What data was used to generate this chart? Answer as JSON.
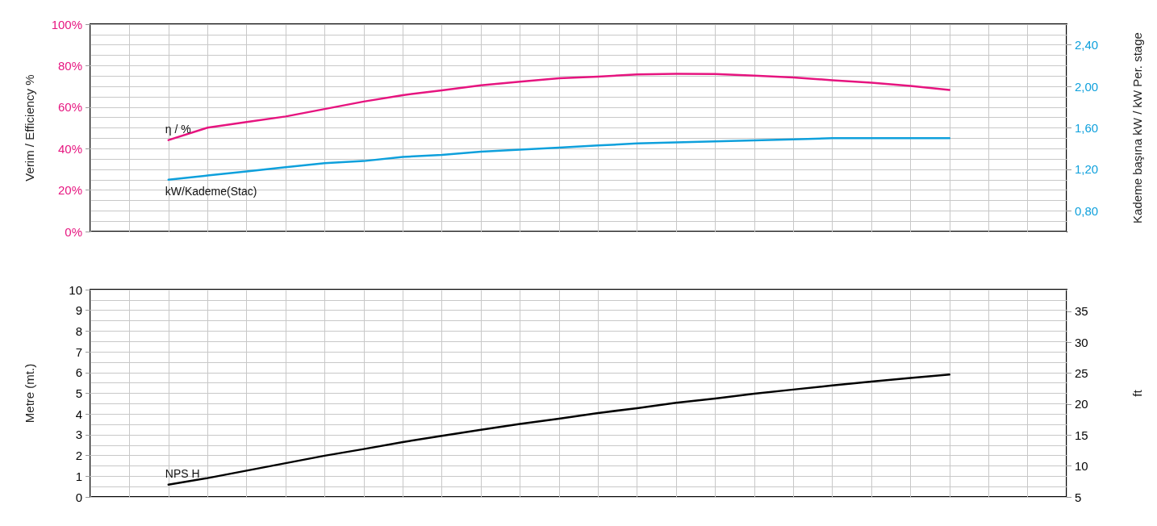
{
  "chart_data": [
    {
      "type": "line",
      "ylabel": "Verim / Efficiency %",
      "y2label": "Kademe başına kW / kW Per. stage",
      "categories": [
        null,
        null,
        null,
        null,
        null,
        null,
        null,
        null,
        null,
        null,
        null,
        null,
        null,
        null,
        null,
        null,
        null,
        null,
        null,
        null,
        null,
        null,
        null,
        null,
        null,
        null
      ],
      "series": [
        {
          "name": "η / %",
          "color": "#e6147f",
          "values": [
            null,
            null,
            44.1,
            50.1,
            52.8,
            55.5,
            59.1,
            62.7,
            65.8,
            68.1,
            70.5,
            72.3,
            73.9,
            74.7,
            75.8,
            76.1,
            76.0,
            75.2,
            74.3,
            73.0,
            71.8,
            70.2,
            68.3,
            null,
            null,
            null
          ]
        },
        {
          "name": "kW/Kademe(Stac)",
          "color": "#0ea0dc",
          "axis": "y2",
          "values": [
            null,
            null,
            1.1,
            1.14,
            1.18,
            1.22,
            1.26,
            1.28,
            1.32,
            1.34,
            1.37,
            1.39,
            1.41,
            1.43,
            1.45,
            1.46,
            1.47,
            1.48,
            1.49,
            1.5,
            1.5,
            1.5,
            1.5,
            null,
            null,
            null
          ]
        }
      ],
      "ylim": [
        0,
        100
      ],
      "yticks": [
        {
          "value": 0,
          "label": "0%"
        },
        {
          "value": 20,
          "label": "20%"
        },
        {
          "value": 40,
          "label": "40%"
        },
        {
          "value": 60,
          "label": "60%"
        },
        {
          "value": 80,
          "label": "80%"
        },
        {
          "value": 100,
          "label": "100%"
        }
      ],
      "y2lim": [
        0.6,
        2.6
      ],
      "y2ticks": [
        {
          "value": 0.8,
          "label": "0,80"
        },
        {
          "value": 1.2,
          "label": "1,20"
        },
        {
          "value": 1.6,
          "label": "1,60"
        },
        {
          "value": 2.0,
          "label": "2,00"
        },
        {
          "value": 2.4,
          "label": "2,40"
        }
      ],
      "grid": true,
      "legend": false,
      "marker": "none",
      "line_style": "solid",
      "tick_labels": "y"
    },
    {
      "type": "line",
      "ylabel": "Metre (mt.)",
      "y2label": "ft",
      "categories": [
        null,
        null,
        null,
        null,
        null,
        null,
        null,
        null,
        null,
        null,
        null,
        null,
        null,
        null,
        null,
        null,
        null,
        null,
        null,
        null,
        null,
        null,
        null,
        null,
        null,
        null
      ],
      "series": [
        {
          "name": "NPS H",
          "color": "#000000",
          "values": [
            null,
            null,
            0.59,
            0.91,
            1.27,
            1.63,
            1.99,
            2.31,
            2.65,
            2.95,
            3.24,
            3.52,
            3.77,
            4.05,
            4.28,
            4.54,
            4.75,
            4.98,
            5.18,
            5.38,
            5.56,
            5.74,
            5.9,
            null,
            null,
            null
          ]
        }
      ],
      "ylim": [
        0,
        10
      ],
      "yticks": [
        0,
        1,
        2,
        3,
        4,
        5,
        6,
        7,
        8,
        9,
        10
      ],
      "y2lim": [
        5,
        38.5
      ],
      "y2ticks": [
        5,
        10,
        15,
        20,
        25,
        30,
        35
      ],
      "grid": true,
      "legend": false,
      "marker": "none",
      "line_style": "solid",
      "tick_labels": "y"
    }
  ]
}
